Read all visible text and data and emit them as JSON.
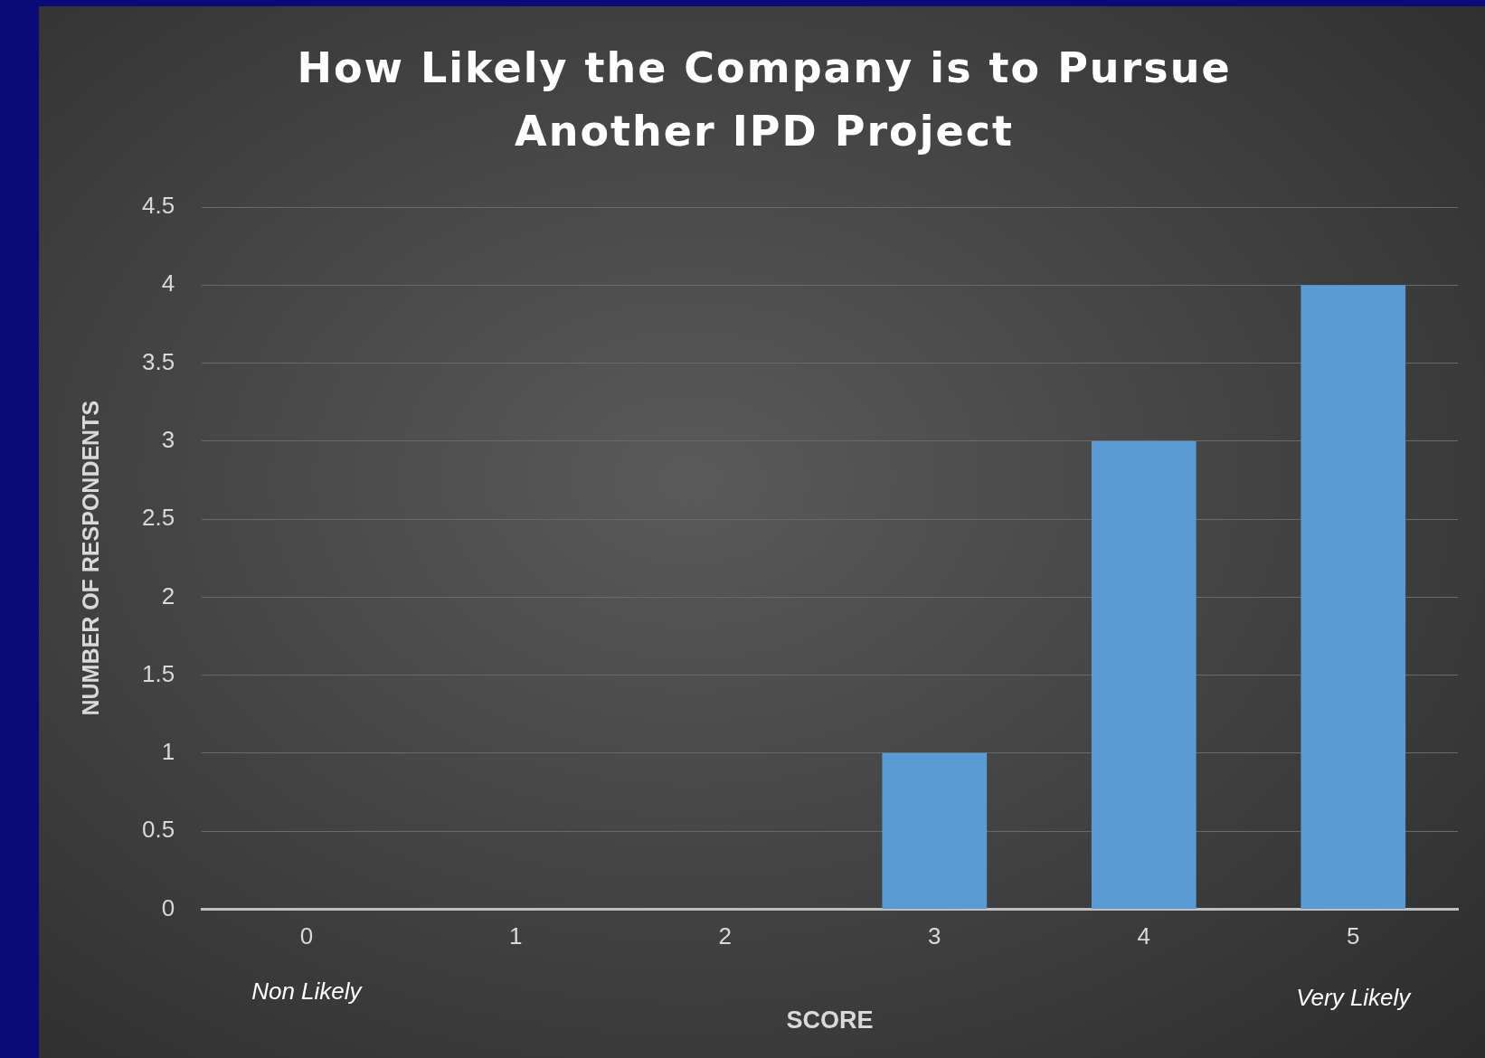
{
  "chart_data": {
    "type": "bar",
    "title": "How Likely the Company is to Pursue Another IPD Project",
    "xlabel": "SCORE",
    "ylabel": "NUMBER OF RESPONDENTS",
    "categories": [
      "0",
      "1",
      "2",
      "3",
      "4",
      "5"
    ],
    "values": [
      0,
      0,
      0,
      1,
      3,
      4
    ],
    "color": "#5b9bd5",
    "ylim": [
      0,
      4.5
    ],
    "yticks": [
      0,
      0.5,
      1,
      1.5,
      2,
      2.5,
      3,
      3.5,
      4,
      4.5
    ],
    "grid": "y",
    "legend": false,
    "annotations": [
      "Non Likely",
      "Very Likely"
    ]
  }
}
